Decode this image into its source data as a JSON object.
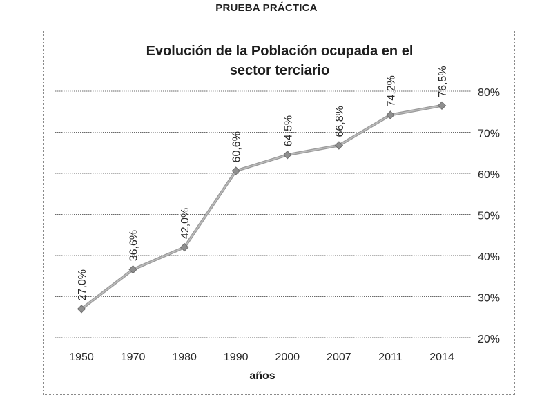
{
  "page": {
    "header": "PRUEBA PRÁCTICA"
  },
  "chart_data": {
    "type": "line",
    "title_lines": [
      "Evolución de la Población ocupada en el",
      "sector terciario"
    ],
    "categories": [
      "1950",
      "1970",
      "1980",
      "1990",
      "2000",
      "2007",
      "2011",
      "2014"
    ],
    "values": [
      27.0,
      36.6,
      42.0,
      60.6,
      64.5,
      66.8,
      74.2,
      76.5
    ],
    "data_labels": [
      "27,0%",
      "36,6%",
      "42,0%",
      "60,6%",
      "64,5%",
      "66,8%",
      "74,2%",
      "76,5%"
    ],
    "xlabel": "años",
    "ylabel": "",
    "ylim": [
      20,
      80
    ],
    "yticks": [
      "20%",
      "30%",
      "40%",
      "50%",
      "60%",
      "70%",
      "80%"
    ],
    "ytick_values": [
      20,
      30,
      40,
      50,
      60,
      70,
      80
    ],
    "y_axis_side": "right",
    "grid": true,
    "legend": "none",
    "colors": {
      "line": "#9b9b9b",
      "marker": "#8f8f8f",
      "grid": "#6a6a6a",
      "text": "#2a2a2a"
    }
  }
}
